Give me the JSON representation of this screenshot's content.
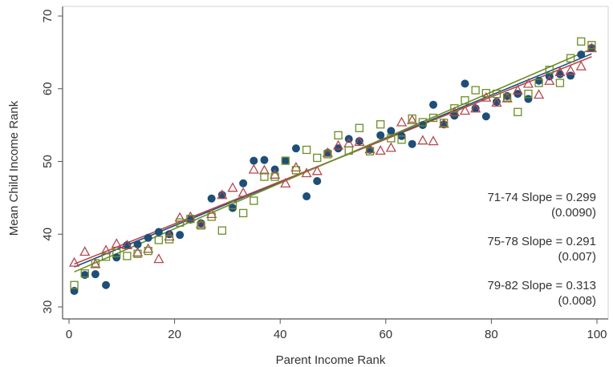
{
  "chart_data": {
    "type": "scatter",
    "title": "",
    "xlabel": "Parent Income Rank",
    "ylabel": "Mean Child Income Rank",
    "xlim": [
      0,
      100
    ],
    "ylim": [
      30,
      70
    ],
    "xticks": [
      "0",
      "20",
      "40",
      "60",
      "80",
      "100"
    ],
    "yticks": [
      "30",
      "40",
      "50",
      "60",
      "70"
    ],
    "grid": false,
    "legend": "none",
    "series": [
      {
        "marker": "circle",
        "color": "#1f4e79",
        "x": [
          1,
          3,
          5,
          7,
          9,
          11,
          13,
          15,
          17,
          19,
          21,
          23,
          25,
          27,
          29,
          31,
          33,
          35,
          37,
          39,
          41,
          43,
          45,
          47,
          49,
          51,
          53,
          55,
          57,
          59,
          61,
          63,
          65,
          67,
          69,
          71,
          73,
          75,
          77,
          79,
          81,
          83,
          85,
          87,
          89,
          91,
          93,
          95,
          97,
          99
        ],
        "y": [
          32.2,
          34.4,
          34.5,
          33.0,
          36.8,
          38.5,
          38.6,
          39.5,
          40.3,
          40.0,
          39.9,
          42.0,
          41.5,
          44.9,
          45.4,
          43.6,
          47.0,
          50.1,
          50.2,
          48.9,
          50.1,
          51.8,
          45.2,
          47.3,
          51.2,
          51.8,
          53.1,
          52.8,
          51.6,
          53.6,
          54.2,
          53.5,
          52.4,
          55.0,
          57.8,
          55.1,
          56.3,
          60.7,
          57.3,
          56.2,
          58.2,
          59.0,
          59.3,
          58.6,
          61.1,
          61.7,
          62.0,
          61.8,
          64.7,
          65.6
        ]
      },
      {
        "marker": "triangle",
        "color": "#b5484f",
        "x": [
          1,
          3,
          5,
          7,
          9,
          11,
          13,
          15,
          17,
          19,
          21,
          23,
          25,
          27,
          29,
          31,
          33,
          35,
          37,
          39,
          41,
          43,
          45,
          47,
          49,
          51,
          53,
          55,
          57,
          59,
          61,
          63,
          65,
          67,
          69,
          71,
          73,
          75,
          77,
          79,
          81,
          83,
          85,
          87,
          89,
          91,
          93,
          95,
          97,
          99
        ],
        "y": [
          36.1,
          37.6,
          35.9,
          37.8,
          38.7,
          38.5,
          37.5,
          38.0,
          36.6,
          39.7,
          42.3,
          42.4,
          41.4,
          42.8,
          45.4,
          46.4,
          45.7,
          48.9,
          48.8,
          48.2,
          47.0,
          49.2,
          48.4,
          48.7,
          51.2,
          52.2,
          52.5,
          52.7,
          51.7,
          51.5,
          51.9,
          55.4,
          55.7,
          52.9,
          52.8,
          55.2,
          56.8,
          57.0,
          57.3,
          58.8,
          58.1,
          58.7,
          59.8,
          60.7,
          59.2,
          61.1,
          62.3,
          62.5,
          63.1,
          65.6
        ]
      },
      {
        "marker": "square",
        "color": "#6b8e23",
        "x": [
          1,
          3,
          5,
          7,
          9,
          11,
          13,
          15,
          17,
          19,
          21,
          23,
          25,
          27,
          29,
          31,
          33,
          35,
          37,
          39,
          41,
          43,
          45,
          47,
          49,
          51,
          53,
          55,
          57,
          59,
          61,
          63,
          65,
          67,
          69,
          71,
          73,
          75,
          77,
          79,
          81,
          83,
          85,
          87,
          89,
          91,
          93,
          95,
          97,
          99
        ],
        "y": [
          33.0,
          34.6,
          36.0,
          36.9,
          37.4,
          37.0,
          37.3,
          37.7,
          39.2,
          39.3,
          41.6,
          42.1,
          41.2,
          42.4,
          40.5,
          44.0,
          42.9,
          44.6,
          47.9,
          47.9,
          50.1,
          48.8,
          51.6,
          50.5,
          51.0,
          53.6,
          51.5,
          54.6,
          51.4,
          55.1,
          53.2,
          53.0,
          55.9,
          55.4,
          56.0,
          55.3,
          57.3,
          58.4,
          59.8,
          59.4,
          59.3,
          58.8,
          56.8,
          59.3,
          60.8,
          62.6,
          60.8,
          64.2,
          66.5,
          66.0
        ]
      }
    ],
    "fit_lines": [
      {
        "color": "#1f4e79",
        "intercept": 35.2,
        "slope": 0.299
      },
      {
        "color": "#b5484f",
        "intercept": 35.6,
        "slope": 0.291
      },
      {
        "color": "#6b8e23",
        "intercept": 34.5,
        "slope": 0.313
      }
    ],
    "annotations": [
      {
        "label": "71-74 Slope = 0.299",
        "se": "(0.0090)"
      },
      {
        "label": "75-78 Slope = 0.291",
        "se": "(0.007)"
      },
      {
        "label": "79-82 Slope = 0.313",
        "se": "(0.008)"
      }
    ]
  }
}
